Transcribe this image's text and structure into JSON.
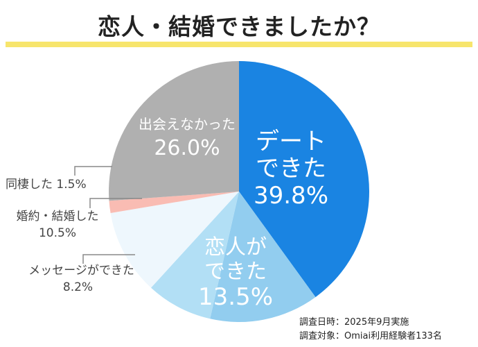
{
  "title": "恋人・結婚できましたか？",
  "chart_data": {
    "type": "pie",
    "title": "恋人・結婚できましたか？",
    "slices": [
      {
        "label": "デートできた",
        "value": 39.8,
        "display": "39.8%",
        "color": "#1a84e2"
      },
      {
        "label": "恋人ができた",
        "value": 13.5,
        "display": "13.5%",
        "color": "#92cdef"
      },
      {
        "label": "メッセージができた",
        "value": 8.2,
        "display": "8.2%",
        "color": "#b2dff5"
      },
      {
        "label": "婚約・結婚した",
        "value": 10.5,
        "display": "10.5%",
        "color": "#eef7fd"
      },
      {
        "label": "同棲した",
        "value": 1.5,
        "display": "1.5%",
        "color": "#f9bcb3"
      },
      {
        "label": "出会えなかった",
        "value": 26.0,
        "display": "26.0%",
        "color": "#b0b0b0"
      }
    ]
  },
  "labels": {
    "date_line1": "デート",
    "date_line2": "できた",
    "koibito_line1": "恋人が",
    "koibito_line2": "できた",
    "msg": "メッセージができた",
    "kekkon": "婚約・結婚した",
    "dousei": "同棲した 1.5%",
    "deaenai": "出会えなかった"
  },
  "footer": {
    "line1": "調査日時：2025年9月実施",
    "line2": "調査対象：Omiai利用経験者133名"
  }
}
